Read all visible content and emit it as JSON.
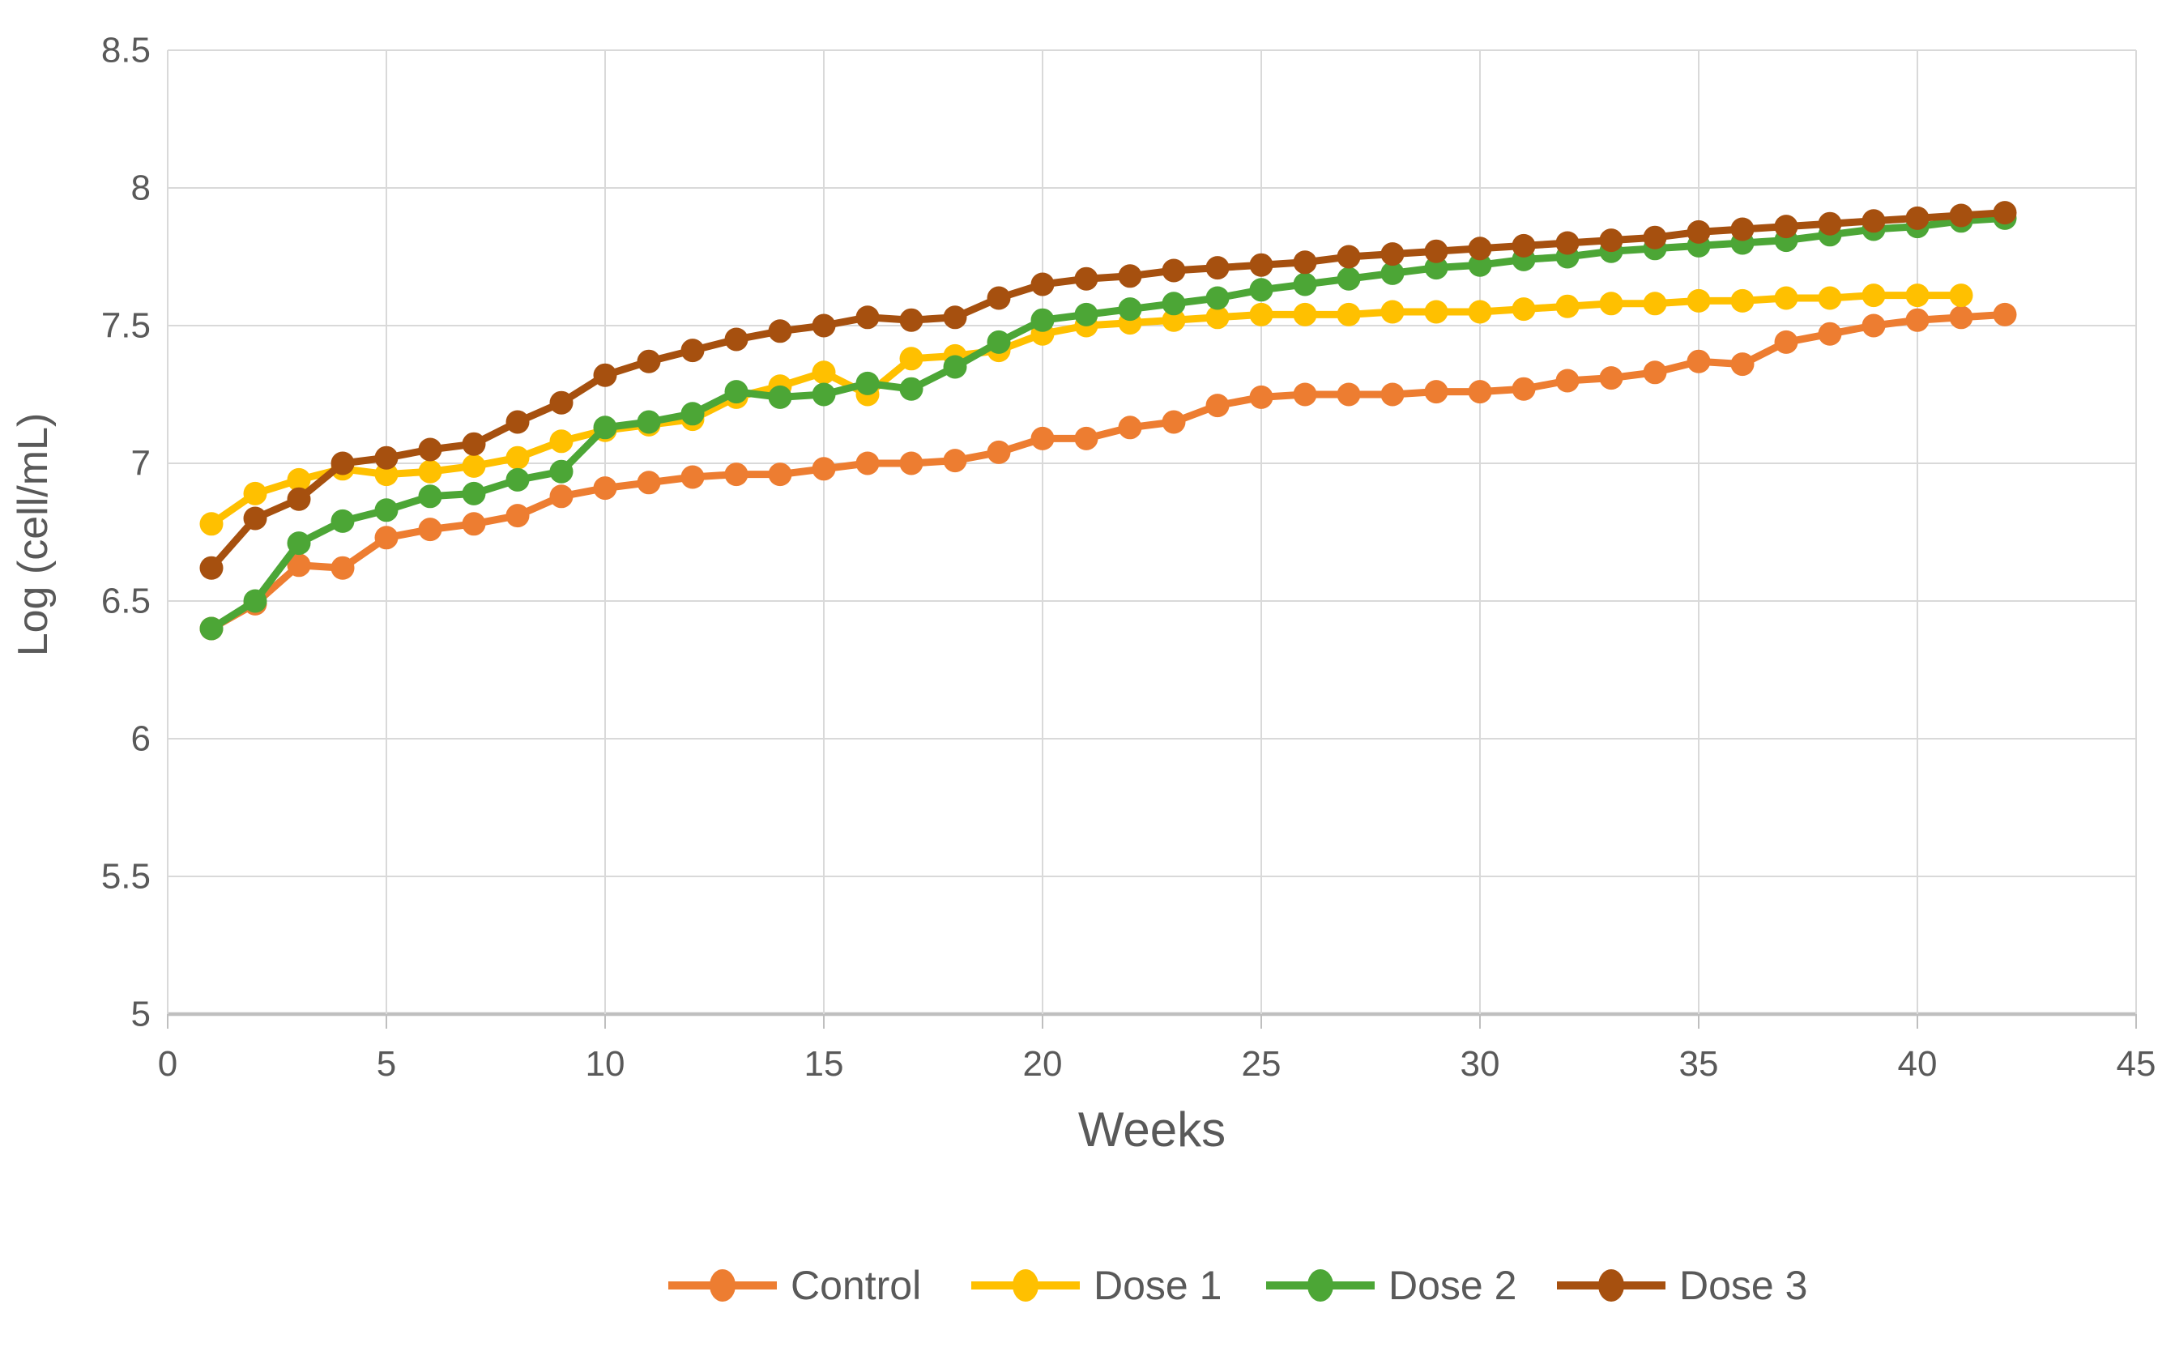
{
  "chart_data": {
    "type": "line",
    "title": "",
    "xlabel": "Weeks",
    "ylabel": "Log (cell/mL)",
    "xlim": [
      0,
      45
    ],
    "ylim": [
      5,
      8.5
    ],
    "grid": true,
    "legend_position": "bottom",
    "x_ticks": [
      0,
      5,
      10,
      15,
      20,
      25,
      30,
      35,
      40,
      45
    ],
    "x_tick_labels": [
      "0",
      "5",
      "10",
      "15",
      "20",
      "25",
      "30",
      "35",
      "40",
      "45"
    ],
    "y_ticks": [
      5,
      5.5,
      6,
      6.5,
      7,
      7.5,
      8,
      8.5
    ],
    "y_tick_labels": [
      "5",
      "5.5",
      "6",
      "6.5",
      "7",
      "7.5",
      "8",
      "8.5"
    ],
    "start_week": 1,
    "series": [
      {
        "name": "Control",
        "color": "#ED7D31",
        "x_start": 1,
        "values": [
          6.4,
          6.49,
          6.63,
          6.62,
          6.73,
          6.76,
          6.78,
          6.81,
          6.88,
          6.91,
          6.93,
          6.95,
          6.96,
          6.96,
          6.98,
          7.0,
          7.0,
          7.01,
          7.04,
          7.09,
          7.09,
          7.13,
          7.15,
          7.21,
          7.24,
          7.25,
          7.25,
          7.25,
          7.26,
          7.26,
          7.27,
          7.3,
          7.31,
          7.33,
          7.37,
          7.36,
          7.44,
          7.47,
          7.5,
          7.52,
          7.53,
          7.54
        ]
      },
      {
        "name": "Dose 1",
        "color": "#FFC000",
        "x_start": 1,
        "values": [
          6.78,
          6.89,
          6.94,
          6.98,
          6.96,
          6.97,
          6.99,
          7.02,
          7.08,
          7.12,
          7.14,
          7.16,
          7.24,
          7.28,
          7.33,
          7.25,
          7.38,
          7.39,
          7.41,
          7.47,
          7.5,
          7.51,
          7.52,
          7.53,
          7.54,
          7.54,
          7.54,
          7.55,
          7.55,
          7.55,
          7.56,
          7.57,
          7.58,
          7.58,
          7.59,
          7.59,
          7.6,
          7.6,
          7.61,
          7.61,
          7.61
        ]
      },
      {
        "name": "Dose 2",
        "color": "#4CA636",
        "x_start": 1,
        "values": [
          6.4,
          6.5,
          6.71,
          6.79,
          6.83,
          6.88,
          6.89,
          6.94,
          6.97,
          7.13,
          7.15,
          7.18,
          7.26,
          7.24,
          7.25,
          7.29,
          7.27,
          7.35,
          7.44,
          7.52,
          7.54,
          7.56,
          7.58,
          7.6,
          7.63,
          7.65,
          7.67,
          7.69,
          7.71,
          7.72,
          7.74,
          7.75,
          7.77,
          7.78,
          7.79,
          7.8,
          7.81,
          7.83,
          7.85,
          7.86,
          7.88,
          7.89
        ]
      },
      {
        "name": "Dose 3",
        "color": "#A6500F",
        "x_start": 1,
        "values": [
          6.62,
          6.8,
          6.87,
          7.0,
          7.02,
          7.05,
          7.07,
          7.15,
          7.22,
          7.32,
          7.37,
          7.41,
          7.45,
          7.48,
          7.5,
          7.53,
          7.52,
          7.53,
          7.6,
          7.65,
          7.67,
          7.68,
          7.7,
          7.71,
          7.72,
          7.73,
          7.75,
          7.76,
          7.77,
          7.78,
          7.79,
          7.8,
          7.81,
          7.82,
          7.84,
          7.85,
          7.86,
          7.87,
          7.88,
          7.89,
          7.9,
          7.91
        ]
      }
    ]
  },
  "colors": {
    "background": "#ffffff",
    "gridline": "#D9D9D9",
    "axis_line": "#BFBFBF",
    "text": "#595959"
  }
}
